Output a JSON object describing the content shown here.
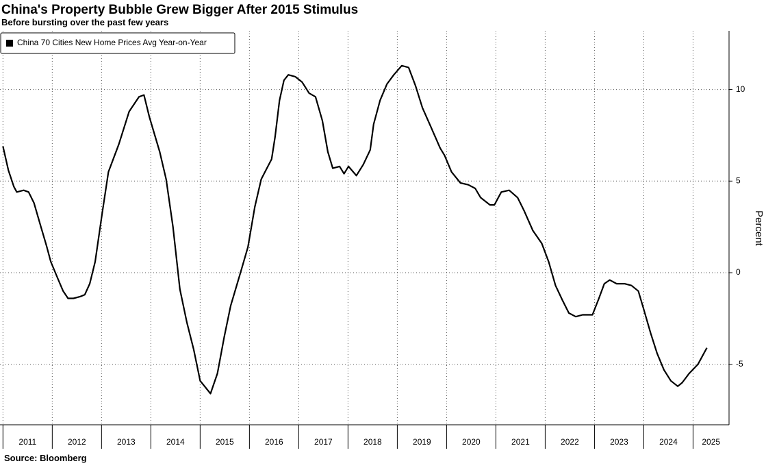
{
  "chart_data": {
    "type": "line",
    "title": "China's Property Bubble Grew Bigger After 2015 Stimulus",
    "subtitle": "Before bursting over the past few years",
    "source": "Source: Bloomberg",
    "ylabel": "Percent",
    "legend": "upper left",
    "grid": true,
    "xlim": [
      2010.94,
      2025.73
    ],
    "ylim": [
      -8.3,
      13.2
    ],
    "yticks": [
      -5,
      0,
      5,
      10
    ],
    "xticks": [
      {
        "value": 2011,
        "label": "2011"
      },
      {
        "value": 2012,
        "label": "2012"
      },
      {
        "value": 2013,
        "label": "2013"
      },
      {
        "value": 2014,
        "label": "2014"
      },
      {
        "value": 2015,
        "label": "2015"
      },
      {
        "value": 2016,
        "label": "2016"
      },
      {
        "value": 2017,
        "label": "2017"
      },
      {
        "value": 2018,
        "label": "2018"
      },
      {
        "value": 2019,
        "label": "2019"
      },
      {
        "value": 2020,
        "label": "2020"
      },
      {
        "value": 2021,
        "label": "2021"
      },
      {
        "value": 2022,
        "label": "2022"
      },
      {
        "value": 2023,
        "label": "2023"
      },
      {
        "value": 2024,
        "label": "2024"
      },
      {
        "value": 2025,
        "label": "2025"
      }
    ],
    "x": [
      2011.0,
      2011.11,
      2011.22,
      2011.28,
      2011.42,
      2011.52,
      2011.63,
      2011.77,
      2011.88,
      2011.97,
      2012.11,
      2012.22,
      2012.32,
      2012.43,
      2012.57,
      2012.66,
      2012.76,
      2012.87,
      2013.01,
      2013.14,
      2013.35,
      2013.56,
      2013.76,
      2013.86,
      2013.97,
      2014.18,
      2014.31,
      2014.45,
      2014.59,
      2014.73,
      2014.87,
      2015.0,
      2015.21,
      2015.35,
      2015.49,
      2015.62,
      2015.83,
      2015.97,
      2016.11,
      2016.24,
      2016.45,
      2016.52,
      2016.61,
      2016.7,
      2016.79,
      2016.93,
      2017.07,
      2017.21,
      2017.34,
      2017.48,
      2017.59,
      2017.69,
      2017.83,
      2017.92,
      2018.01,
      2018.17,
      2018.31,
      2018.45,
      2018.52,
      2018.65,
      2018.79,
      2018.93,
      2019.09,
      2019.23,
      2019.37,
      2019.51,
      2019.69,
      2019.87,
      2019.96,
      2020.1,
      2020.28,
      2020.44,
      2020.58,
      2020.69,
      2020.88,
      2020.97,
      2021.11,
      2021.27,
      2021.44,
      2021.57,
      2021.75,
      2021.93,
      2022.07,
      2022.21,
      2022.35,
      2022.48,
      2022.62,
      2022.76,
      2022.96,
      2023.09,
      2023.2,
      2023.31,
      2023.45,
      2023.61,
      2023.75,
      2023.89,
      2024.0,
      2024.14,
      2024.27,
      2024.41,
      2024.55,
      2024.69,
      2024.78,
      2024.92,
      2025.1,
      2025.28
    ],
    "series": [
      {
        "name": "China 70 Cities New Home Prices Avg Year-on-Year",
        "color": "#000000",
        "values": [
          6.9,
          5.6,
          4.7,
          4.4,
          4.5,
          4.4,
          3.8,
          2.5,
          1.5,
          0.6,
          -0.3,
          -1.0,
          -1.4,
          -1.4,
          -1.3,
          -1.2,
          -0.6,
          0.6,
          3.2,
          5.5,
          7.0,
          8.8,
          9.6,
          9.7,
          8.5,
          6.6,
          5.1,
          2.5,
          -0.9,
          -2.7,
          -4.2,
          -5.9,
          -6.6,
          -5.5,
          -3.5,
          -1.8,
          0.1,
          1.4,
          3.6,
          5.1,
          6.2,
          7.4,
          9.4,
          10.5,
          10.8,
          10.7,
          10.4,
          9.8,
          9.6,
          8.3,
          6.6,
          5.7,
          5.8,
          5.4,
          5.8,
          5.3,
          5.9,
          6.7,
          8.1,
          9.4,
          10.3,
          10.8,
          11.3,
          11.2,
          10.2,
          9.0,
          7.9,
          6.8,
          6.4,
          5.5,
          4.9,
          4.8,
          4.6,
          4.1,
          3.7,
          3.7,
          4.4,
          4.5,
          4.1,
          3.4,
          2.3,
          1.6,
          0.6,
          -0.7,
          -1.5,
          -2.2,
          -2.4,
          -2.3,
          -2.3,
          -1.4,
          -0.6,
          -0.4,
          -0.6,
          -0.6,
          -0.7,
          -1.0,
          -2.0,
          -3.3,
          -4.4,
          -5.3,
          -5.9,
          -6.2,
          -6.0,
          -5.5,
          -5.0,
          -4.1
        ]
      }
    ]
  }
}
